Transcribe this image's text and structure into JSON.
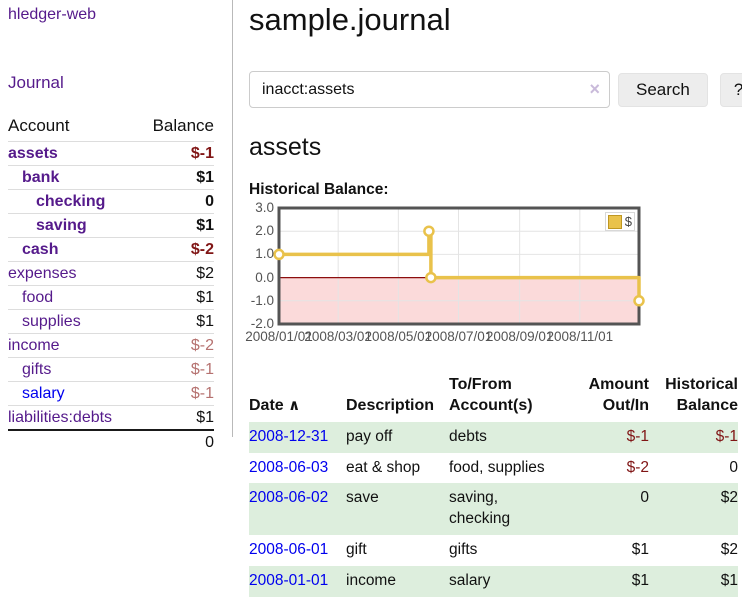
{
  "sidebar": {
    "brand": "hledger-web",
    "journal_link": "Journal",
    "table": {
      "header_account": "Account",
      "header_balance": "Balance",
      "rows": [
        {
          "account": "assets",
          "balance": "$-1"
        },
        {
          "account": "bank",
          "balance": "$1"
        },
        {
          "account": "checking",
          "balance": "0"
        },
        {
          "account": "saving",
          "balance": "$1"
        },
        {
          "account": "cash",
          "balance": "$-2"
        },
        {
          "account": "expenses",
          "balance": "$2"
        },
        {
          "account": "food",
          "balance": "$1"
        },
        {
          "account": "supplies",
          "balance": "$1"
        },
        {
          "account": "income",
          "balance": "$-2"
        },
        {
          "account": "gifts",
          "balance": "$-1"
        },
        {
          "account": "salary",
          "balance": "$-1"
        },
        {
          "account": "liabilities:debts",
          "balance": "$1"
        }
      ],
      "total": "0"
    }
  },
  "header": {
    "title": "sample.journal"
  },
  "search": {
    "value": "inacct:assets",
    "clear_icon": "×",
    "button_label": "Search",
    "help_label": "?"
  },
  "main": {
    "account_heading": "assets",
    "chart_title": "Historical Balance:"
  },
  "chart_data": {
    "type": "line",
    "step": true,
    "title": "Historical Balance",
    "x_range": [
      "2008-01-01",
      "2008-12-31"
    ],
    "ylim": [
      -2,
      3
    ],
    "y_ticks": [
      "3.0",
      "2.0",
      "1.0",
      "0.0",
      "-1.0",
      "-2.0"
    ],
    "x_ticks": [
      "2008/01/01",
      "2008/03/01",
      "2008/05/01",
      "2008/07/01",
      "2008/09/01",
      "2008/11/01"
    ],
    "series": [
      {
        "name": "$",
        "color": "#e9c24b",
        "points": [
          {
            "date": "2008-01-01",
            "value": 1
          },
          {
            "date": "2008-06-01",
            "value": 2
          },
          {
            "date": "2008-06-03",
            "value": 0
          },
          {
            "date": "2008-12-31",
            "value": -1
          }
        ]
      }
    ],
    "legend_position": "top-right",
    "grid": true,
    "negative_fill": "#fbdada",
    "zero_line_color": "#8c0e0e",
    "grid_color": "#e4e4e4",
    "border_color": "#545454"
  },
  "register": {
    "sort_indicator": "∧",
    "headers": {
      "date": "Date",
      "description": "Description",
      "tofrom_line1": "To/From",
      "tofrom_line2": "Account(s)",
      "amount_line1": "Amount",
      "amount_line2": "Out/In",
      "balance_line1": "Historical",
      "balance_line2": "Balance"
    },
    "rows": [
      {
        "date": "2008-12-31",
        "description": "pay off",
        "accounts": "debts",
        "amount": "$-1",
        "balance": "$-1"
      },
      {
        "date": "2008-06-03",
        "description": "eat & shop",
        "accounts": "food, supplies",
        "amount": "$-2",
        "balance": "0"
      },
      {
        "date": "2008-06-02",
        "description": "save",
        "accounts": "saving, checking",
        "amount": "0",
        "balance": "$2"
      },
      {
        "date": "2008-06-01",
        "description": "gift",
        "accounts": "gifts",
        "amount": "$1",
        "balance": "$2"
      },
      {
        "date": "2008-01-01",
        "description": "income",
        "accounts": "salary",
        "amount": "$1",
        "balance": "$1"
      }
    ]
  }
}
